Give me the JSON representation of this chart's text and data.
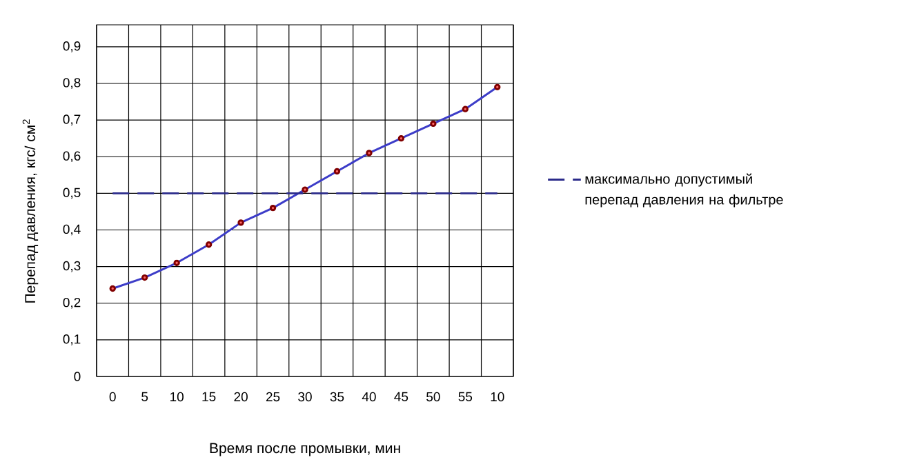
{
  "chart_data": {
    "type": "line",
    "xlabel": "Время после промывки, мин",
    "ylabel": "Перепад давления, кгс/ см$^{2}$",
    "categories": [
      "0",
      "5",
      "10",
      "15",
      "20",
      "25",
      "30",
      "35",
      "40",
      "45",
      "50",
      "55",
      "10"
    ],
    "series": [
      {
        "color": "#3c3cc8",
        "values": [
          0.24,
          0.27,
          0.31,
          0.36,
          0.42,
          0.46,
          0.51,
          0.56,
          0.61,
          0.65,
          0.69,
          0.73,
          0.79
        ]
      },
      {
        "name": "максимально допустимый перепад давления на фильтре",
        "color": "#2a2a8a",
        "line_style": "dashed",
        "marker": "none",
        "values": [
          0.5,
          0.5,
          0.5,
          0.5,
          0.5,
          0.5,
          0.5,
          0.5,
          0.5,
          0.5,
          0.5,
          0.5,
          0.5
        ]
      }
    ],
    "marker": "circle",
    "ylim": [
      0,
      0.96
    ],
    "yticks": [
      {
        "value": 0,
        "label": "0"
      },
      {
        "value": 0.1,
        "label": "0,1"
      },
      {
        "value": 0.2,
        "label": "0,2"
      },
      {
        "value": 0.3,
        "label": "0,3"
      },
      {
        "value": 0.4,
        "label": "0,4"
      },
      {
        "value": 0.5,
        "label": "0,5"
      },
      {
        "value": 0.6,
        "label": "0,6"
      },
      {
        "value": 0.7,
        "label": "0,7"
      },
      {
        "value": 0.8,
        "label": "0,8"
      },
      {
        "value": 0.9,
        "label": "0,9"
      }
    ],
    "grid": true,
    "legend": "right"
  }
}
